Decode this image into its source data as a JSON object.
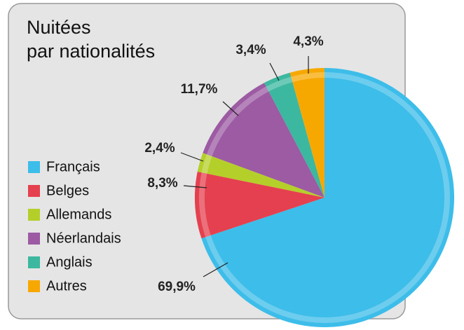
{
  "chart_data": {
    "type": "pie",
    "title": "Nuitées\npar nationalités",
    "categories": [
      "Français",
      "Belges",
      "Allemands",
      "Néerlandais",
      "Anglais",
      "Autres"
    ],
    "values": [
      69.9,
      8.3,
      2.4,
      11.7,
      3.4,
      4.3
    ],
    "value_labels": [
      "69,9%",
      "8,3%",
      "2,4%",
      "11,7%",
      "3,4%",
      "4,3%"
    ],
    "colors": [
      "#3dbde9",
      "#e5404f",
      "#b5cf2a",
      "#9c5ba3",
      "#3cb8a0",
      "#f7a800"
    ],
    "legend": "left"
  }
}
